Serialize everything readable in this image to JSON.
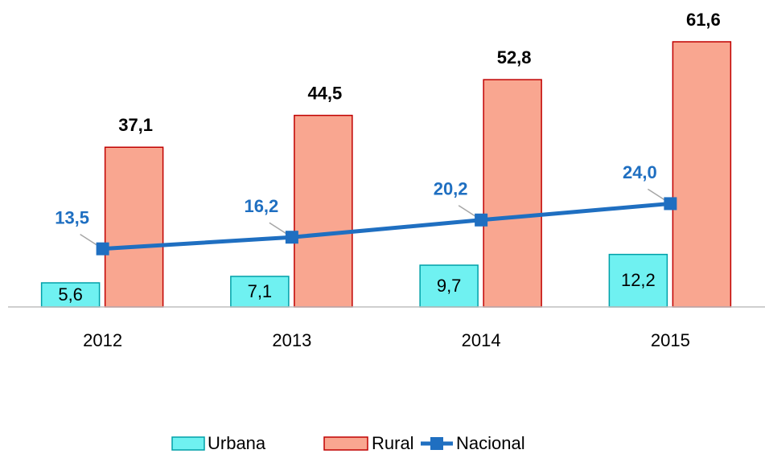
{
  "chart_data": {
    "type": "bar",
    "categories": [
      "2012",
      "2013",
      "2014",
      "2015"
    ],
    "ylim": [
      0,
      70
    ],
    "legend": "bottom",
    "series": [
      {
        "name": "Urbana",
        "type": "bar",
        "color": "#6ff1f1",
        "values": [
          5.6,
          7.1,
          9.7,
          12.2
        ],
        "value_labels": [
          "5,6",
          "7,1",
          "9,7",
          "12,2"
        ]
      },
      {
        "name": "Rural",
        "type": "bar",
        "color": "#f9a690",
        "values": [
          37.1,
          44.5,
          52.8,
          61.6
        ],
        "value_labels": [
          "37,1",
          "44,5",
          "52,8",
          "61,6"
        ]
      },
      {
        "name": "Nacional",
        "type": "line",
        "color": "#1f6fc1",
        "values": [
          13.5,
          16.2,
          20.2,
          24.0
        ],
        "value_labels": [
          "13,5",
          "16,2",
          "20,2",
          "24,0"
        ]
      }
    ]
  }
}
